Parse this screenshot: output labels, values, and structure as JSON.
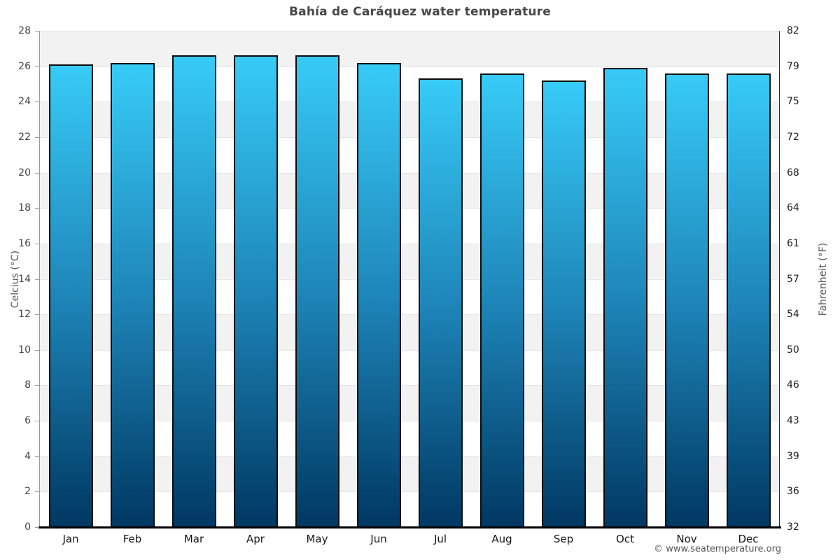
{
  "title": "Bahía de Caráquez water temperature",
  "footer": {
    "credit": "© www.seatemperature.org"
  },
  "chart_data": {
    "type": "bar",
    "title": "Bahía de Caráquez water temperature",
    "categories": [
      "Jan",
      "Feb",
      "Mar",
      "Apr",
      "May",
      "Jun",
      "Jul",
      "Aug",
      "Sep",
      "Oct",
      "Nov",
      "Dec"
    ],
    "values": [
      26.1,
      26.2,
      26.6,
      26.6,
      26.6,
      26.2,
      25.3,
      25.6,
      25.2,
      25.9,
      25.6,
      25.6
    ],
    "unit": "°C",
    "ylabel_left": "Celcius (°C)",
    "ylabel_right": "Fahrenheit (°F)",
    "ylim_celsius": [
      0,
      28
    ],
    "yticks_celsius": [
      0,
      2,
      4,
      6,
      8,
      10,
      12,
      14,
      16,
      18,
      20,
      22,
      24,
      26,
      28
    ],
    "yticks_fahrenheit": [
      32,
      36,
      39,
      43,
      46,
      50,
      54,
      57,
      61,
      64,
      68,
      72,
      75,
      79,
      82
    ],
    "legend": "none",
    "grid": "alternating 2°C horizontal bands",
    "colors": {
      "bar_gradient_top": "#37cbf7",
      "bar_gradient_mid": "#1e86b9",
      "bar_gradient_bottom": "#003862",
      "bar_border": "#0c0c0c",
      "band_gray": "#f2f2f2",
      "band_white": "#ffffff",
      "gridline": "#e4e4e4",
      "title_color": "#474747",
      "footer_color": "#555555"
    }
  }
}
